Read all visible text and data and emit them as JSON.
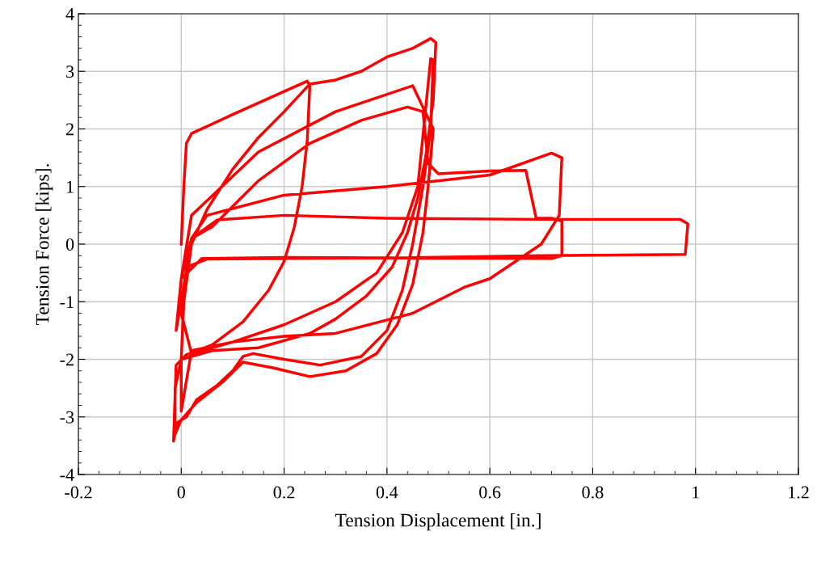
{
  "chart_data": {
    "type": "line",
    "xlabel": "Tension Displacement [in.]",
    "ylabel": "Tension Force [kips].",
    "xlim": [
      -0.2,
      1.2
    ],
    "xticks": [
      -0.2,
      0,
      0.2,
      0.4,
      0.6,
      0.8,
      1,
      1.2
    ],
    "ylim": [
      -4,
      4
    ],
    "yticks": [
      -4,
      -3,
      -2,
      -1,
      0,
      1,
      2,
      3,
      4
    ],
    "grid": true,
    "marker": "none",
    "line_style": "solid",
    "series": [
      {
        "color": "#ff0000",
        "x": [
          0,
          0.005,
          0.01,
          0.02,
          0.1,
          0.2,
          0.245,
          0.25,
          0.245,
          0.235,
          0.22,
          0.2,
          0.17,
          0.12,
          0.06,
          0.01,
          -0.01,
          -0.015,
          -0.008,
          0.01,
          0.03,
          0.07,
          0.1,
          0.12,
          0.14,
          0.2,
          0.27,
          0.35,
          0.4,
          0.43,
          0.45,
          0.47,
          0.485,
          0.49,
          0.485,
          0.46,
          0.43,
          0.38,
          0.3,
          0.2,
          0.1,
          0.02,
          0.0,
          0.0,
          0.005,
          0.02,
          0.05,
          0.1,
          0.15,
          0.2,
          0.25,
          0.3,
          0.35,
          0.4,
          0.45,
          0.485,
          0.495,
          0.49,
          0.475,
          0.46,
          0.44,
          0.41,
          0.36,
          0.3,
          0.25,
          0.15,
          0.06,
          0.0,
          -0.012,
          -0.012,
          0.0,
          0.03,
          0.08,
          0.12,
          0.18,
          0.25,
          0.32,
          0.38,
          0.42,
          0.45,
          0.47,
          0.48,
          0.49,
          0.45,
          0.3,
          0.15,
          0.02,
          0.0,
          0.02,
          0.06,
          0.15,
          0.25,
          0.35,
          0.44,
          0.47,
          0.48,
          0.5,
          0.6,
          0.67,
          0.69,
          0.72,
          0.74,
          0.74,
          0.72,
          0.4,
          0.2,
          0.04,
          0.0,
          -0.01,
          0.0,
          0.02,
          0.05,
          0.2,
          0.4,
          0.6,
          0.72,
          0.74,
          0.735,
          0.7,
          0.6,
          0.55,
          0.45,
          0.3,
          0.2,
          0.1,
          0.02,
          0.0,
          0.02,
          0.07,
          0.2,
          0.4,
          0.7,
          0.97,
          0.985,
          0.98,
          0.7,
          0.4,
          0.2,
          0.05,
          0.01
        ],
        "values": [
          0,
          1.0,
          1.75,
          1.92,
          2.25,
          2.65,
          2.83,
          2.75,
          1.8,
          1.0,
          0.3,
          -0.3,
          -0.8,
          -1.35,
          -1.75,
          -1.92,
          -2.1,
          -3.42,
          -3.1,
          -3.0,
          -2.7,
          -2.45,
          -2.2,
          -1.95,
          -1.9,
          -2.0,
          -2.1,
          -1.95,
          -1.5,
          -0.8,
          0,
          1.0,
          2.0,
          3.2,
          3.22,
          1.0,
          0.2,
          -0.5,
          -1.0,
          -1.4,
          -1.7,
          -1.85,
          -2.9,
          -2.0,
          -1.0,
          0.0,
          0.6,
          1.3,
          1.85,
          2.3,
          2.78,
          2.85,
          3.0,
          3.25,
          3.4,
          3.57,
          3.5,
          2.5,
          1.5,
          0.8,
          0.2,
          -0.4,
          -0.9,
          -1.3,
          -1.55,
          -1.8,
          -1.85,
          -2.0,
          -2.5,
          -3.3,
          -3.05,
          -2.75,
          -2.4,
          -2.05,
          -2.15,
          -2.3,
          -2.2,
          -1.9,
          -1.4,
          -0.7,
          0.2,
          1.0,
          2.0,
          2.75,
          2.3,
          1.6,
          0.5,
          -0.6,
          0.1,
          0.3,
          1.1,
          1.75,
          2.15,
          2.38,
          2.3,
          1.4,
          1.22,
          1.27,
          1.28,
          0.45,
          0.45,
          0.4,
          -0.2,
          -0.25,
          -0.24,
          -0.23,
          -0.25,
          -0.6,
          -1.5,
          -1.0,
          0.1,
          0.5,
          0.85,
          1.0,
          1.2,
          1.58,
          1.5,
          0.5,
          0.0,
          -0.6,
          -0.75,
          -1.2,
          -1.55,
          -1.6,
          -1.7,
          -1.9,
          -1.2,
          0.1,
          0.42,
          0.5,
          0.45,
          0.43,
          0.43,
          0.35,
          -0.18,
          -0.2,
          -0.24,
          -0.25,
          -0.26,
          -0.4
        ]
      }
    ]
  }
}
